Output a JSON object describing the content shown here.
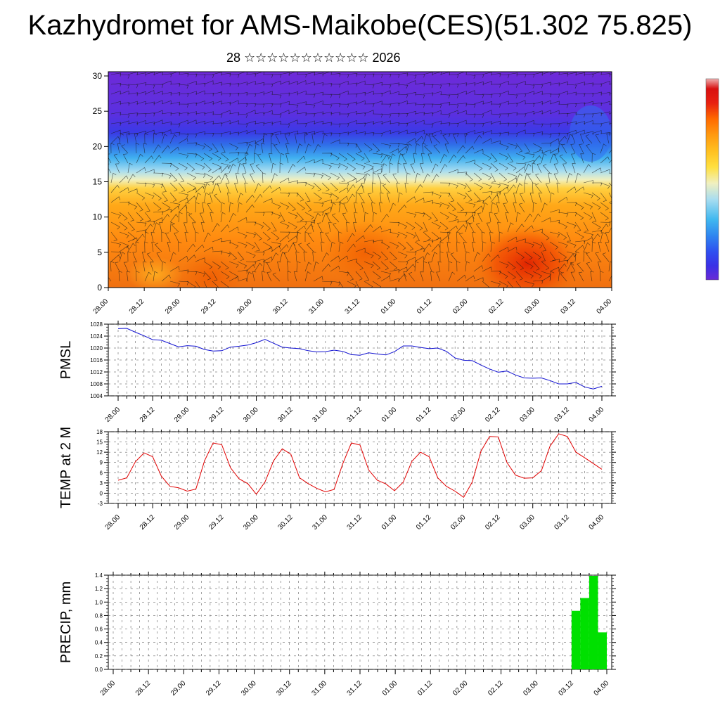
{
  "header": {
    "title": "Kazhydromet for AMS-Maikobe(CES)(51.302 75.825)",
    "subtitle": "28 ☆☆☆☆☆☆☆☆☆☆☆ 2026"
  },
  "colors": {
    "pmsl_line": "#1010d0",
    "temp_line": "#e00000",
    "precip_bar": "#00e000",
    "colorbar": [
      "#6a2ad6",
      "#4a32e0",
      "#2f4ff0",
      "#2f86f0",
      "#40b8f0",
      "#a8ddf0",
      "#f0f0c0",
      "#ffe040",
      "#ffc020",
      "#ff9a10",
      "#ff7000",
      "#f04000",
      "#d81010",
      "#f0a0a0"
    ]
  },
  "chart_data": [
    {
      "id": "cross-section",
      "type": "heatmap",
      "y_ticks": [
        "0",
        "5",
        "10",
        "15",
        "20",
        "25",
        "30"
      ],
      "x_ticks": [
        "28.00",
        "28.12",
        "29.00",
        "29.12",
        "30.00",
        "30.12",
        "31.00",
        "31.12",
        "01.00",
        "01.12",
        "02.00",
        "02.12",
        "03.00",
        "03.12",
        "04.00"
      ]
    },
    {
      "id": "pmsl",
      "type": "line",
      "ylabel": "PMSL",
      "ylim": [
        1004,
        1028
      ],
      "y_ticks": [
        "1004",
        "1008",
        "1012",
        "1016",
        "1020",
        "1024",
        "1028"
      ],
      "x_ticks": [
        "28.00",
        "28.12",
        "29.00",
        "29.12",
        "30.00",
        "30.12",
        "31.00",
        "31.12",
        "01.00",
        "01.12",
        "02.00",
        "02.12",
        "03.00",
        "03.12",
        "04.00"
      ],
      "values": [
        1026.5,
        1026.6,
        1025.3,
        1024.1,
        1022.8,
        1022.6,
        1021.5,
        1020.4,
        1020.8,
        1020.6,
        1019.5,
        1019.0,
        1019.1,
        1020.3,
        1020.6,
        1021.0,
        1021.8,
        1022.9,
        1021.6,
        1020.3,
        1020.0,
        1019.8,
        1019.1,
        1018.7,
        1018.8,
        1019.3,
        1018.9,
        1017.8,
        1017.6,
        1018.4,
        1018.0,
        1017.7,
        1018.8,
        1020.7,
        1020.7,
        1020.2,
        1019.8,
        1020.0,
        1018.9,
        1016.7,
        1015.9,
        1015.8,
        1014.3,
        1013.0,
        1011.9,
        1012.3,
        1011.0,
        1010.0,
        1009.9,
        1010.0,
        1009.1,
        1008.0,
        1008.0,
        1008.5,
        1007.0,
        1006.3,
        1007.2
      ]
    },
    {
      "id": "temp",
      "type": "line",
      "ylabel": "TEMP at 2 M",
      "ylim": [
        -3,
        18
      ],
      "y_ticks": [
        "-3",
        "0",
        "3",
        "6",
        "9",
        "12",
        "15",
        "18"
      ],
      "x_ticks": [
        "28.00",
        "28.12",
        "29.00",
        "29.12",
        "30.00",
        "30.12",
        "31.00",
        "31.12",
        "01.00",
        "01.12",
        "02.00",
        "02.12",
        "03.00",
        "03.12",
        "04.00"
      ],
      "values": [
        3.8,
        4.5,
        9.2,
        11.8,
        10.7,
        5.0,
        2.0,
        1.6,
        0.6,
        1.2,
        9.5,
        14.7,
        14.2,
        7.5,
        4.2,
        2.8,
        -0.3,
        3.3,
        9.5,
        13.0,
        11.4,
        4.5,
        2.8,
        1.4,
        0.4,
        1.1,
        8.6,
        14.7,
        14.1,
        6.8,
        3.8,
        2.7,
        0.7,
        3.2,
        9.3,
        12.0,
        10.7,
        4.5,
        2.0,
        0.6,
        -1.2,
        3.3,
        12.3,
        16.6,
        16.5,
        9.0,
        5.3,
        4.4,
        4.5,
        6.6,
        13.8,
        17.4,
        16.6,
        12.0,
        10.4,
        8.7,
        7.0
      ]
    },
    {
      "id": "precip",
      "type": "bar",
      "ylabel": "PRECIP, mm",
      "ylim": [
        0,
        1.4
      ],
      "y_ticks": [
        "0.0",
        "0.2",
        "0.4",
        "0.6",
        "0.8",
        "1.0",
        "1.2",
        "1.4"
      ],
      "x_ticks": [
        "28.00",
        "28.12",
        "29.00",
        "29.12",
        "30.00",
        "30.12",
        "31.00",
        "31.12",
        "01.00",
        "01.12",
        "02.00",
        "02.12",
        "03.00",
        "03.12",
        "04.00"
      ],
      "bars": [
        {
          "start": 13.0,
          "end": 13.25,
          "value": 0.87
        },
        {
          "start": 13.25,
          "end": 13.5,
          "value": 1.06
        },
        {
          "start": 13.5,
          "end": 13.75,
          "value": 1.39
        },
        {
          "start": 13.75,
          "end": 14.0,
          "value": 0.55
        }
      ]
    }
  ]
}
